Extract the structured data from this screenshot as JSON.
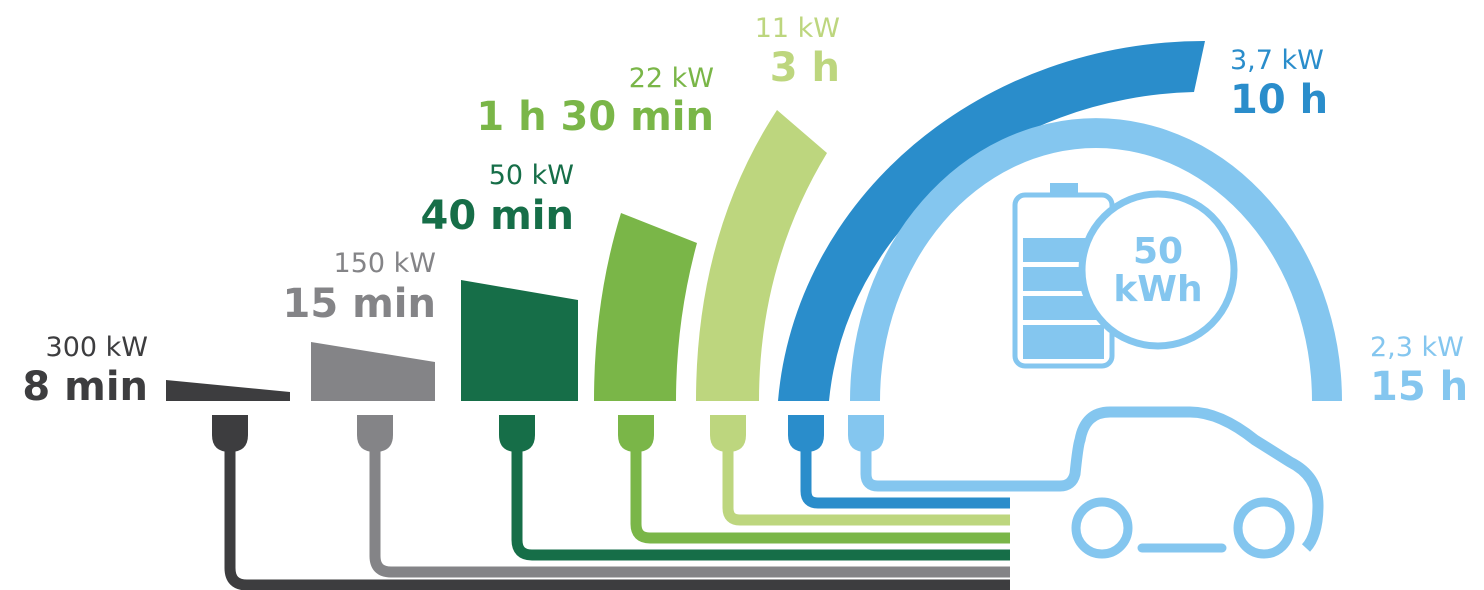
{
  "colors": {
    "c300": "#3d3d3f",
    "c150": "#848487",
    "c50": "#166e48",
    "c22": "#7ab648",
    "c11": "#bdd67e",
    "c37": "#2a8dcb",
    "c23": "#84c6ef"
  },
  "levels": [
    {
      "power": "300 kW",
      "time": "8 min"
    },
    {
      "power": "150 kW",
      "time": "15 min"
    },
    {
      "power": "50 kW",
      "time": "40 min"
    },
    {
      "power": "22 kW",
      "time": "1 h 30 min"
    },
    {
      "power": "11 kW",
      "time": "3 h"
    },
    {
      "power": "3,7 kW",
      "time": "10 h"
    },
    {
      "power": "2,3 kW",
      "time": "15 h"
    }
  ],
  "battery": {
    "capacity_line1": "50",
    "capacity_line2": "kWh"
  },
  "icons": [
    "charging-plug-icon",
    "battery-icon",
    "car-icon"
  ]
}
